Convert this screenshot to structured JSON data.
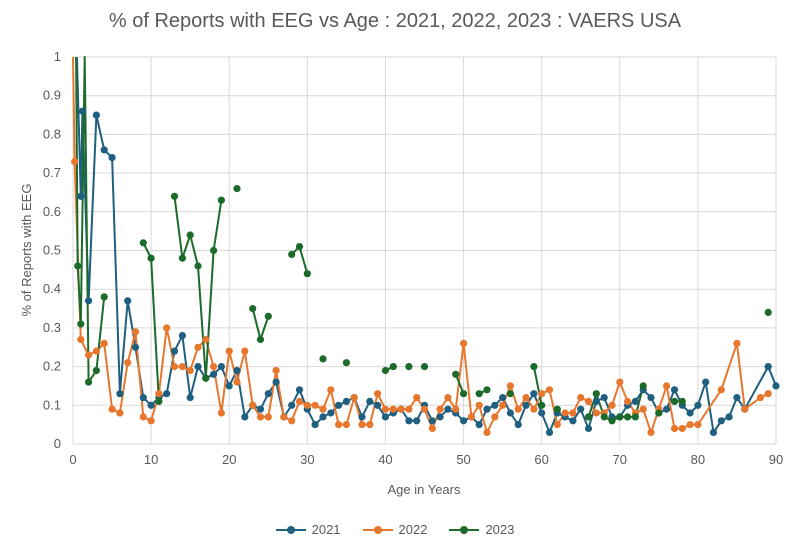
{
  "chart_data": {
    "type": "line",
    "title": "% of Reports with EEG vs Age : 2021, 2022, 2023 : VAERS USA",
    "xlabel": "Age in Years",
    "ylabel": "% of Reports with EEG",
    "xlim": [
      0,
      90
    ],
    "ylim": [
      0,
      1
    ],
    "x_ticks": [
      "0",
      "10",
      "20",
      "30",
      "40",
      "50",
      "60",
      "70",
      "80",
      "90"
    ],
    "y_ticks": [
      "0",
      "0.1",
      "0.2",
      "0.3",
      "0.4",
      "0.5",
      "0.6",
      "0.7",
      "0.8",
      "0.9",
      "1"
    ],
    "grid": "vertical and horizontal",
    "legend_position": "bottom",
    "series": [
      {
        "name": "2021",
        "color": "#1f5f7f",
        "points": [
          [
            0.5,
            1.0
          ],
          [
            1,
            0.64
          ],
          [
            1.2,
            0.86
          ],
          [
            2,
            0.37
          ],
          [
            3,
            0.85
          ],
          [
            4,
            0.76
          ],
          [
            5,
            0.74
          ],
          [
            6,
            0.13
          ],
          [
            7,
            0.37
          ],
          [
            8,
            0.25
          ],
          [
            9,
            0.12
          ],
          [
            10,
            0.1
          ],
          [
            11,
            0.12
          ],
          [
            12,
            0.13
          ],
          [
            13,
            0.24
          ],
          [
            14,
            0.28
          ],
          [
            15,
            0.12
          ],
          [
            16,
            0.2
          ],
          [
            17,
            0.17
          ],
          [
            18,
            0.18
          ],
          [
            19,
            0.2
          ],
          [
            20,
            0.15
          ],
          [
            21,
            0.19
          ],
          [
            22,
            0.07
          ],
          [
            23,
            0.1
          ],
          [
            24,
            0.09
          ],
          [
            25,
            0.13
          ],
          [
            26,
            0.16
          ],
          [
            27,
            0.07
          ],
          [
            28,
            0.1
          ],
          [
            29,
            0.14
          ],
          [
            30,
            0.09
          ],
          [
            31,
            0.05
          ],
          [
            32,
            0.07
          ],
          [
            33,
            0.08
          ],
          [
            34,
            0.1
          ],
          [
            35,
            0.11
          ],
          [
            36,
            0.12
          ],
          [
            37,
            0.07
          ],
          [
            38,
            0.11
          ],
          [
            39,
            0.1
          ],
          [
            40,
            0.07
          ],
          [
            41,
            0.08
          ],
          [
            42,
            0.09
          ],
          [
            43,
            0.06
          ],
          [
            44,
            0.06
          ],
          [
            45,
            0.1
          ],
          [
            46,
            0.06
          ],
          [
            47,
            0.07
          ],
          [
            48,
            0.09
          ],
          [
            49,
            0.08
          ],
          [
            50,
            0.06
          ],
          [
            51,
            0.07
          ],
          [
            52,
            0.05
          ],
          [
            53,
            0.09
          ],
          [
            54,
            0.1
          ],
          [
            55,
            0.12
          ],
          [
            56,
            0.08
          ],
          [
            57,
            0.05
          ],
          [
            58,
            0.1
          ],
          [
            59,
            0.13
          ],
          [
            60,
            0.08
          ],
          [
            61,
            0.03
          ],
          [
            62,
            0.08
          ],
          [
            63,
            0.07
          ],
          [
            64,
            0.06
          ],
          [
            65,
            0.09
          ],
          [
            66,
            0.04
          ],
          [
            67,
            0.11
          ],
          [
            68,
            0.12
          ],
          [
            69,
            0.07
          ],
          [
            70,
            0.07
          ],
          [
            71,
            0.1
          ],
          [
            72,
            0.11
          ],
          [
            73,
            0.14
          ],
          [
            74,
            0.12
          ],
          [
            75,
            0.08
          ],
          [
            76,
            0.09
          ],
          [
            77,
            0.14
          ],
          [
            78,
            0.1
          ],
          [
            79,
            0.08
          ],
          [
            80,
            0.1
          ],
          [
            81,
            0.16
          ],
          [
            82,
            0.03
          ],
          [
            83,
            0.06
          ],
          [
            84,
            0.07
          ],
          [
            85,
            0.12
          ],
          [
            86,
            0.09
          ],
          [
            89,
            0.2
          ],
          [
            90,
            0.15
          ]
        ]
      },
      {
        "name": "2022",
        "color": "#e8772e",
        "points": [
          [
            0,
            1.0
          ],
          [
            0.2,
            0.73
          ],
          [
            1,
            0.27
          ],
          [
            2,
            0.23
          ],
          [
            3,
            0.24
          ],
          [
            4,
            0.26
          ],
          [
            5,
            0.09
          ],
          [
            6,
            0.08
          ],
          [
            7,
            0.21
          ],
          [
            8,
            0.29
          ],
          [
            9,
            0.07
          ],
          [
            10,
            0.06
          ],
          [
            11,
            0.13
          ],
          [
            12,
            0.3
          ],
          [
            13,
            0.2
          ],
          [
            14,
            0.2
          ],
          [
            15,
            0.19
          ],
          [
            16,
            0.25
          ],
          [
            17,
            0.27
          ],
          [
            18,
            0.2
          ],
          [
            19,
            0.08
          ],
          [
            20,
            0.24
          ],
          [
            21,
            0.16
          ],
          [
            22,
            0.24
          ],
          [
            23,
            0.1
          ],
          [
            24,
            0.07
          ],
          [
            25,
            0.07
          ],
          [
            26,
            0.19
          ],
          [
            27,
            0.07
          ],
          [
            28,
            0.06
          ],
          [
            29,
            0.11
          ],
          [
            30,
            0.1
          ],
          [
            31,
            0.1
          ],
          [
            32,
            0.09
          ],
          [
            33,
            0.14
          ],
          [
            34,
            0.05
          ],
          [
            35,
            0.05
          ],
          [
            36,
            0.12
          ],
          [
            37,
            0.05
          ],
          [
            38,
            0.05
          ],
          [
            39,
            0.13
          ],
          [
            40,
            0.09
          ],
          [
            41,
            0.09
          ],
          [
            42,
            0.09
          ],
          [
            43,
            0.09
          ],
          [
            44,
            0.12
          ],
          [
            45,
            0.09
          ],
          [
            46,
            0.04
          ],
          [
            47,
            0.09
          ],
          [
            48,
            0.12
          ],
          [
            49,
            0.09
          ],
          [
            50,
            0.26
          ],
          [
            51,
            0.07
          ],
          [
            52,
            0.1
          ],
          [
            53,
            0.03
          ],
          [
            54,
            0.07
          ],
          [
            55,
            0.1
          ],
          [
            56,
            0.15
          ],
          [
            57,
            0.09
          ],
          [
            58,
            0.12
          ],
          [
            59,
            0.09
          ],
          [
            60,
            0.13
          ],
          [
            61,
            0.14
          ],
          [
            62,
            0.05
          ],
          [
            63,
            0.08
          ],
          [
            64,
            0.08
          ],
          [
            65,
            0.12
          ],
          [
            66,
            0.11
          ],
          [
            67,
            0.08
          ],
          [
            68,
            0.08
          ],
          [
            69,
            0.1
          ],
          [
            70,
            0.16
          ],
          [
            71,
            0.11
          ],
          [
            72,
            0.08
          ],
          [
            73,
            0.09
          ],
          [
            74,
            0.03
          ],
          [
            75,
            0.09
          ],
          [
            76,
            0.15
          ],
          [
            77,
            0.04
          ],
          [
            78,
            0.04
          ],
          [
            79,
            0.05
          ],
          [
            80,
            0.05
          ],
          [
            83,
            0.14
          ],
          [
            85,
            0.26
          ],
          [
            86,
            0.09
          ],
          [
            88,
            0.12
          ],
          [
            89,
            0.13
          ]
        ]
      },
      {
        "name": "2023",
        "color": "#1c6b2a",
        "segments": [
          [
            [
              0.4,
              1.0
            ],
            [
              0.6,
              0.46
            ],
            [
              1,
              0.31
            ],
            [
              1.5,
              1.0
            ],
            [
              2,
              0.16
            ],
            [
              3,
              0.19
            ],
            [
              4,
              0.38
            ]
          ],
          [
            [
              9,
              0.52
            ],
            [
              10,
              0.48
            ],
            [
              11,
              0.11
            ]
          ],
          [
            [
              13,
              0.64
            ],
            [
              14,
              0.48
            ],
            [
              15,
              0.54
            ],
            [
              16,
              0.46
            ],
            [
              17,
              0.17
            ],
            [
              18,
              0.5
            ],
            [
              19,
              0.63
            ]
          ],
          [
            [
              21,
              0.66
            ]
          ],
          [
            [
              23,
              0.35
            ],
            [
              24,
              0.27
            ],
            [
              25,
              0.33
            ]
          ],
          [
            [
              28,
              0.49
            ],
            [
              29,
              0.51
            ],
            [
              30,
              0.44
            ]
          ],
          [
            [
              32,
              0.22
            ]
          ],
          [
            [
              35,
              0.21
            ]
          ],
          [
            [
              40,
              0.19
            ],
            [
              41,
              0.2
            ]
          ],
          [
            [
              43,
              0.2
            ]
          ],
          [
            [
              45,
              0.2
            ]
          ],
          [
            [
              49,
              0.18
            ],
            [
              50,
              0.13
            ]
          ],
          [
            [
              52,
              0.13
            ],
            [
              53,
              0.14
            ]
          ],
          [
            [
              56,
              0.13
            ]
          ],
          [
            [
              59,
              0.2
            ],
            [
              60,
              0.1
            ]
          ],
          [
            [
              62,
              0.09
            ]
          ],
          [
            [
              66,
              0.07
            ],
            [
              67,
              0.13
            ],
            [
              68,
              0.07
            ],
            [
              69,
              0.06
            ],
            [
              70,
              0.07
            ],
            [
              71,
              0.07
            ],
            [
              72,
              0.07
            ],
            [
              73,
              0.15
            ]
          ],
          [
            [
              75,
              0.08
            ]
          ],
          [
            [
              77,
              0.11
            ],
            [
              78,
              0.11
            ]
          ],
          [
            [
              89,
              0.34
            ]
          ]
        ]
      }
    ]
  }
}
